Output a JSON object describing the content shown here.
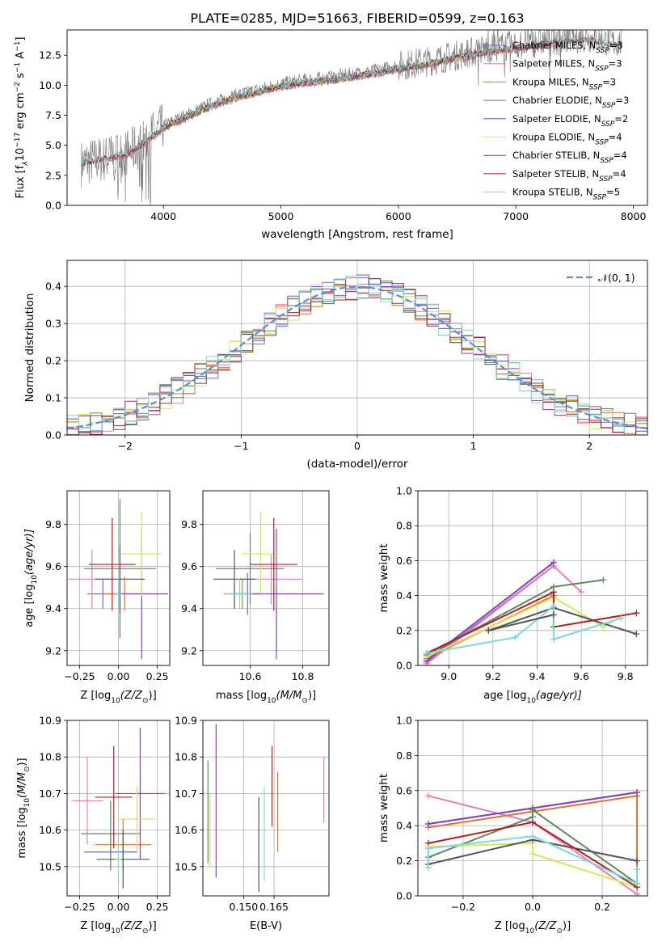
{
  "figure_title": "PLATE=0285, MJD=51663, FIBERID=0599, z=0.163",
  "colors": {
    "chabrier_miles": "#5b6fd6",
    "salpeter_miles": "#e87fb3",
    "kroupa_miles": "#d9762a",
    "chabrier_elodie": "#5b8a5b",
    "salpeter_elodie": "#8e3fb8",
    "kroupa_elodie": "#d3e85a",
    "chabrier_stelib": "#555555",
    "salpeter_stelib": "#b21f1f",
    "kroupa_stelib": "#7fd8d8",
    "observed": "#808080",
    "gaussian": "#5b8fd6",
    "grid": "#b0b0b0"
  },
  "chart_data": [
    {
      "id": "spectrum",
      "type": "line",
      "title": "PLATE=0285, MJD=51663, FIBERID=0599, z=0.163",
      "xlabel": "wavelength [Angstrom, rest frame]",
      "ylabel_main": "Flux [f",
      "ylabel_sub": "λ",
      "ylabel_rest": "10",
      "ylabel_sup": "−17",
      "ylabel_tail": " erg cm",
      "ylabel_sup2": "−2",
      "ylabel_tail2": " s",
      "ylabel_sup3": "−1",
      "ylabel_tail3": " A",
      "ylabel_sup4": "−1",
      "ylabel_end": "]",
      "xlim": [
        3180,
        8120
      ],
      "ylim": [
        0,
        14.6
      ],
      "xticks": [
        4000,
        5000,
        6000,
        7000,
        8000
      ],
      "yticks": [
        0.0,
        2.5,
        5.0,
        7.5,
        10.0,
        12.5
      ],
      "grid": false,
      "legend_position": "upper-right",
      "legend": [
        {
          "label": "Chabrier MILES, N",
          "sub": "SSP",
          "tail": "=3"
        },
        {
          "label": "Salpeter MILES, N",
          "sub": "SSP",
          "tail": "=3"
        },
        {
          "label": "Kroupa MILES, N",
          "sub": "SSP",
          "tail": "=3"
        },
        {
          "label": "Chabrier ELODIE, N",
          "sub": "SSP",
          "tail": "=3"
        },
        {
          "label": "Salpeter ELODIE, N",
          "sub": "SSP",
          "tail": "=2"
        },
        {
          "label": "Kroupa ELODIE, N",
          "sub": "SSP",
          "tail": "=4"
        },
        {
          "label": "Chabrier STELIB, N",
          "sub": "SSP",
          "tail": "=4"
        },
        {
          "label": "Salpeter STELIB, N",
          "sub": "SSP",
          "tail": "=4"
        },
        {
          "label": "Kroupa STELIB, N",
          "sub": "SSP",
          "tail": "=5"
        }
      ],
      "continuum": [
        [
          3300,
          3.5
        ],
        [
          3500,
          3.9
        ],
        [
          3700,
          4.4
        ],
        [
          3800,
          5.0
        ],
        [
          3900,
          5.8
        ],
        [
          4000,
          6.6
        ],
        [
          4200,
          7.5
        ],
        [
          4400,
          8.4
        ],
        [
          4600,
          9.1
        ],
        [
          4800,
          9.6
        ],
        [
          5000,
          10.1
        ],
        [
          5200,
          10.4
        ],
        [
          5400,
          10.6
        ],
        [
          5600,
          10.9
        ],
        [
          5800,
          11.2
        ],
        [
          6000,
          11.6
        ],
        [
          6200,
          11.9
        ],
        [
          6400,
          12.3
        ],
        [
          6600,
          12.7
        ],
        [
          6800,
          13.1
        ],
        [
          7000,
          13.3
        ],
        [
          7200,
          13.6
        ],
        [
          7400,
          13.8
        ],
        [
          7600,
          14.0
        ],
        [
          7800,
          13.6
        ],
        [
          7900,
          13.5
        ]
      ]
    },
    {
      "id": "residuals",
      "type": "histogram",
      "xlabel": "(data-model)/error",
      "ylabel": "Normed distribution",
      "xlim": [
        -2.5,
        2.5
      ],
      "ylim": [
        0,
        0.47
      ],
      "xticks": [
        -2,
        -1,
        0,
        1,
        2
      ],
      "yticks": [
        0.0,
        0.1,
        0.2,
        0.3,
        0.4
      ],
      "grid": true,
      "legend_position": "upper-right",
      "legend_label": "𝒩(0, 1)",
      "bin_width": 0.1
    },
    {
      "id": "age_vs_Z",
      "type": "scatter",
      "xlabel": "Z [log",
      "xlabel_sub": "10",
      "xlabel_tail": "(Z/Z",
      "xlabel_sub2": "⊙",
      "xlabel_end": ")]",
      "ylabel": "age  [log",
      "ylabel_sub": "10",
      "ylabel_tail": "(age/yr)]",
      "xlim": [
        -0.33,
        0.33
      ],
      "ylim": [
        9.13,
        9.96
      ],
      "xticks": [
        -0.25,
        0.0,
        0.25
      ],
      "xticklabels": [
        "−0.25",
        "0.00",
        "0.25"
      ],
      "yticks": [
        9.2,
        9.4,
        9.6,
        9.8
      ],
      "grid": true,
      "points": [
        {
          "k": "chabrier_miles",
          "x": -0.1,
          "y": 9.47,
          "xe": 0.1,
          "ye": 0.07
        },
        {
          "k": "salpeter_miles",
          "x": -0.17,
          "y": 9.54,
          "xe": 0.15,
          "ye": 0.14
        },
        {
          "k": "kroupa_miles",
          "x": 0.04,
          "y": 9.47,
          "xe": 0.15,
          "ye": 0.08
        },
        {
          "k": "chabrier_elodie",
          "x": 0.01,
          "y": 9.59,
          "xe": 0.23,
          "ye": 0.33
        },
        {
          "k": "salpeter_elodie",
          "x": 0.15,
          "y": 9.47,
          "xe": 0.17,
          "ye": 0.31
        },
        {
          "k": "kroupa_elodie",
          "x": 0.15,
          "y": 9.66,
          "xe": 0.13,
          "ye": 0.2
        },
        {
          "k": "chabrier_stelib",
          "x": 0.01,
          "y": 9.54,
          "xe": 0.16,
          "ye": 0.16
        },
        {
          "k": "salpeter_stelib",
          "x": -0.04,
          "y": 9.61,
          "xe": 0.15,
          "ye": 0.22
        },
        {
          "k": "kroupa_stelib",
          "x": 0.0,
          "y": 9.47,
          "xe": 0.02,
          "ye": 0.07
        }
      ]
    },
    {
      "id": "age_vs_mass",
      "type": "scatter",
      "xlabel": "mass [log",
      "xlabel_sub": "10",
      "xlabel_tail": "(M/M",
      "xlabel_sub2": "⊙",
      "xlabel_end": ")]",
      "xlim": [
        10.42,
        10.9
      ],
      "ylim": [
        9.13,
        9.96
      ],
      "xticks": [
        10.6,
        10.8
      ],
      "yticks": [
        9.2,
        9.4,
        9.6,
        9.8
      ],
      "grid": true,
      "points": [
        {
          "k": "chabrier_miles",
          "x": 10.59,
          "y": 9.47,
          "xe": 0.05,
          "ye": 0.1
        },
        {
          "k": "salpeter_miles",
          "x": 10.68,
          "y": 9.54,
          "xe": 0.12,
          "ye": 0.12
        },
        {
          "k": "kroupa_miles",
          "x": 10.57,
          "y": 9.47,
          "xe": 0.07,
          "ye": 0.07
        },
        {
          "k": "chabrier_elodie",
          "x": 10.6,
          "y": 9.59,
          "xe": 0.13,
          "ye": 0.17
        },
        {
          "k": "salpeter_elodie",
          "x": 10.7,
          "y": 9.47,
          "xe": 0.18,
          "ye": 0.31
        },
        {
          "k": "kroupa_elodie",
          "x": 10.64,
          "y": 9.66,
          "xe": 0.07,
          "ye": 0.2
        },
        {
          "k": "chabrier_stelib",
          "x": 10.54,
          "y": 9.54,
          "xe": 0.08,
          "ye": 0.14
        },
        {
          "k": "salpeter_stelib",
          "x": 10.69,
          "y": 9.61,
          "xe": 0.09,
          "ye": 0.22
        },
        {
          "k": "kroupa_stelib",
          "x": 10.56,
          "y": 9.47,
          "xe": 0.05,
          "ye": 0.07
        }
      ]
    },
    {
      "id": "massweight_vs_age",
      "type": "line",
      "xlabel": "age  [log",
      "xlabel_sub": "10",
      "xlabel_tail": "(age/yr)]",
      "ylabel": "mass weight",
      "xlim": [
        8.86,
        9.9
      ],
      "ylim": [
        0,
        1.0
      ],
      "xticks": [
        9.0,
        9.2,
        9.4,
        9.6,
        9.8
      ],
      "yticks": [
        0.0,
        0.2,
        0.4,
        0.6,
        0.8,
        1.0
      ],
      "grid": true,
      "series": [
        {
          "k": "chabrier_miles",
          "x": [
            8.9,
            9.475
          ],
          "y": [
            0.02,
            0.57
          ]
        },
        {
          "k": "salpeter_miles",
          "x": [
            8.9,
            9.475,
            9.6
          ],
          "y": [
            0.01,
            0.57,
            0.42
          ]
        },
        {
          "k": "kroupa_miles",
          "x": [
            8.9,
            9.475
          ],
          "y": [
            0.04,
            0.4
          ]
        },
        {
          "k": "chabrier_elodie",
          "x": [
            8.9,
            9.475,
            9.7
          ],
          "y": [
            0.06,
            0.45,
            0.49
          ]
        },
        {
          "k": "salpeter_elodie",
          "x": [
            8.9,
            9.475
          ],
          "y": [
            0.03,
            0.59
          ]
        },
        {
          "k": "kroupa_elodie",
          "x": [
            8.9,
            9.475,
            9.7,
            9.78
          ],
          "y": [
            0.05,
            0.39,
            0.22,
            0.28
          ]
        },
        {
          "k": "chabrier_stelib",
          "x": [
            9.18,
            9.475,
            9.85
          ],
          "y": [
            0.2,
            0.33,
            0.18
          ]
        },
        {
          "k": "salpeter_stelib",
          "x": [
            8.9,
            9.475,
            9.475,
            9.85
          ],
          "y": [
            0.07,
            0.42,
            0.22,
            0.3
          ]
        },
        {
          "k": "kroupa_stelib",
          "x": [
            8.9,
            9.3,
            9.475,
            9.475,
            9.78
          ],
          "y": [
            0.07,
            0.16,
            0.34,
            0.15,
            0.27
          ]
        }
      ],
      "extra_segments": [
        {
          "k": "chabrier_stelib",
          "x": [
            9.18,
            9.475
          ],
          "y": [
            0.2,
            0.29
          ]
        }
      ]
    },
    {
      "id": "mass_vs_Z",
      "type": "scatter",
      "ylabel": "mass [log",
      "ylabel_sub": "10",
      "ylabel_tail": "(M/M",
      "ylabel_sub2": "⊙",
      "ylabel_end": ")]",
      "xlabel": "Z [log",
      "xlabel_sub": "10",
      "xlabel_tail": "(Z/Z",
      "xlabel_sub2": "⊙",
      "xlabel_end": ")]",
      "xlim": [
        -0.33,
        0.33
      ],
      "ylim": [
        10.42,
        10.9
      ],
      "xticks": [
        -0.25,
        0.0,
        0.25
      ],
      "xticklabels": [
        "−0.25",
        "0.00",
        "0.25"
      ],
      "yticks": [
        10.5,
        10.6,
        10.7,
        10.8,
        10.9
      ],
      "grid": true,
      "points": [
        {
          "k": "chabrier_miles",
          "x": -0.05,
          "y": 10.54,
          "xe": 0.17,
          "ye": 0.05
        },
        {
          "k": "salpeter_miles",
          "x": -0.2,
          "y": 10.68,
          "xe": 0.1,
          "ye": 0.12
        },
        {
          "k": "kroupa_miles",
          "x": 0.03,
          "y": 10.56,
          "xe": 0.18,
          "ye": 0.07
        },
        {
          "k": "chabrier_elodie",
          "x": -0.05,
          "y": 10.59,
          "xe": 0.19,
          "ye": 0.09
        },
        {
          "k": "salpeter_elodie",
          "x": 0.14,
          "y": 10.7,
          "xe": 0.16,
          "ye": 0.18
        },
        {
          "k": "kroupa_elodie",
          "x": 0.12,
          "y": 10.63,
          "xe": 0.12,
          "ye": 0.09
        },
        {
          "k": "chabrier_stelib",
          "x": 0.03,
          "y": 10.52,
          "xe": 0.17,
          "ye": 0.08
        },
        {
          "k": "salpeter_stelib",
          "x": -0.03,
          "y": 10.69,
          "xe": 0.12,
          "ye": 0.14
        },
        {
          "k": "kroupa_stelib",
          "x": 0.0,
          "y": 10.52,
          "xe": 0.02,
          "ye": 0.07
        }
      ]
    },
    {
      "id": "mass_vs_EBV",
      "type": "scatter",
      "xlabel": "E(B-V)",
      "xlim": [
        0.13,
        0.192
      ],
      "ylim": [
        10.42,
        10.9
      ],
      "xticks": [
        0.15,
        0.165
      ],
      "xticklabels": [
        "0.150",
        "0.165"
      ],
      "yticks": [
        10.5,
        10.6,
        10.7,
        10.8,
        10.9
      ],
      "grid": true,
      "points": [
        {
          "k": "chabrier_elodie",
          "x": 0.1325,
          "y": 10.65,
          "xe": 0,
          "ye": 0.14
        },
        {
          "k": "salpeter_elodie",
          "x": 0.1365,
          "y": 10.68,
          "xe": 0,
          "ye": 0.21
        },
        {
          "k": "kroupa_elodie",
          "x": 0.1335,
          "y": 10.6,
          "xe": 0,
          "ye": 0.1
        },
        {
          "k": "chabrier_stelib",
          "x": 0.1575,
          "y": 10.56,
          "xe": 0,
          "ye": 0.13
        },
        {
          "k": "kroupa_stelib",
          "x": 0.1602,
          "y": 10.59,
          "xe": 0,
          "ye": 0.13
        },
        {
          "k": "salpeter_stelib",
          "x": 0.164,
          "y": 10.72,
          "xe": 0,
          "ye": 0.11
        },
        {
          "k": "kroupa_miles",
          "x": 0.1668,
          "y": 10.65,
          "xe": 0,
          "ye": 0.11
        },
        {
          "k": "salpeter_miles",
          "x": 0.1895,
          "y": 10.71,
          "xe": 0,
          "ye": 0.09
        }
      ]
    },
    {
      "id": "massweight_vs_Z",
      "type": "line",
      "ylabel": "mass weight",
      "xlabel": "Z [log",
      "xlabel_sub": "10",
      "xlabel_tail": "(Z/Z",
      "xlabel_sub2": "⊙",
      "xlabel_end": ")]",
      "xlim": [
        -0.33,
        0.33
      ],
      "ylim": [
        0,
        1.0
      ],
      "xticks": [
        -0.2,
        0.0,
        0.2
      ],
      "xticklabels": [
        "−0.2",
        "0.0",
        "0.2"
      ],
      "yticks": [
        0.0,
        0.2,
        0.4,
        0.6,
        0.8,
        1.0
      ],
      "grid": true,
      "series": [
        {
          "k": "salpeter_miles",
          "x": [
            -0.3,
            0.0,
            0.3
          ],
          "y": [
            0.57,
            0.42,
            0.01
          ]
        },
        {
          "k": "kroupa_miles",
          "x": [
            -0.3,
            0.0,
            0.3,
            0.3
          ],
          "y": [
            0.39,
            0.48,
            0.57,
            0.05
          ]
        },
        {
          "k": "chabrier_miles",
          "x": [
            -0.3,
            0.0,
            0.3
          ],
          "y": [
            0.41,
            0.5,
            0.59
          ]
        },
        {
          "k": "salpeter_elodie",
          "x": [
            -0.3,
            0.0,
            0.3
          ],
          "y": [
            0.41,
            0.5,
            0.59
          ]
        },
        {
          "k": "chabrier_elodie",
          "x": [
            -0.3,
            0.0,
            0.0,
            0.3
          ],
          "y": [
            0.22,
            0.45,
            0.49,
            0.07
          ]
        },
        {
          "k": "kroupa_elodie",
          "x": [
            -0.3,
            0.0,
            0.0,
            0.3
          ],
          "y": [
            0.28,
            0.3,
            0.24,
            0.05
          ]
        },
        {
          "k": "chabrier_stelib",
          "x": [
            -0.3,
            0.0,
            0.3
          ],
          "y": [
            0.18,
            0.32,
            0.2
          ]
        },
        {
          "k": "salpeter_stelib",
          "x": [
            -0.3,
            0.0,
            0.3
          ],
          "y": [
            0.3,
            0.42,
            0.05
          ]
        },
        {
          "k": "kroupa_stelib",
          "x": [
            -0.3,
            -0.3,
            0.0,
            0.3,
            0.3
          ],
          "y": [
            0.16,
            0.27,
            0.34,
            0.07,
            0.15
          ]
        }
      ]
    }
  ]
}
